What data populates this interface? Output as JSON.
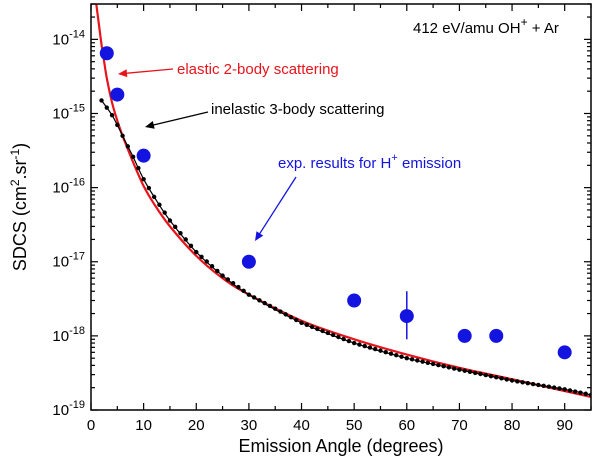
{
  "chart_data": {
    "type": "scatter",
    "title": "412 eV/amu OH⁺ + Ar",
    "xlabel": "Emission Angle (degrees)",
    "ylabel": "SDCS (cm².sr⁻¹)",
    "xlim": [
      0,
      95
    ],
    "ylim": [
      1e-19,
      3e-14
    ],
    "yscale": "log",
    "x_ticks": [
      0,
      10,
      20,
      30,
      40,
      50,
      60,
      70,
      80,
      90
    ],
    "x_tick_labels": [
      "0",
      "10",
      "20",
      "30",
      "40",
      "50",
      "60",
      "70",
      "80",
      "90"
    ],
    "y_ticks": [
      1e-19,
      1e-18,
      1e-17,
      1e-16,
      1e-15,
      1e-14
    ],
    "y_tick_labels": [
      {
        "base": "10",
        "exp": "-19"
      },
      {
        "base": "10",
        "exp": "-18"
      },
      {
        "base": "10",
        "exp": "-17"
      },
      {
        "base": "10",
        "exp": "-16"
      },
      {
        "base": "10",
        "exp": "-15"
      },
      {
        "base": "10",
        "exp": "-14"
      }
    ],
    "grid": false,
    "series": [
      {
        "name": "elastic 2-body scattering",
        "kind": "line",
        "color": "#e8141b",
        "x": [
          1,
          1.5,
          2,
          2.5,
          3,
          4,
          5,
          6,
          7,
          8,
          10,
          12,
          15,
          20,
          25,
          30,
          40,
          50,
          60,
          70,
          80,
          90,
          95
        ],
        "y": [
          3e-14,
          1.6e-14,
          8.5e-15,
          5e-15,
          3e-15,
          1.4e-15,
          8e-16,
          5e-16,
          3.3e-16,
          2.2e-16,
          1.05e-16,
          6e-17,
          3e-17,
          1.2e-17,
          6e-18,
          3.6e-18,
          1.6e-18,
          9e-19,
          5.6e-19,
          3.7e-19,
          2.6e-19,
          1.8e-19,
          1.5e-19
        ]
      },
      {
        "name": "inelastic 3-body scattering",
        "kind": "line-markers",
        "color": "#000000",
        "x": [
          2,
          3,
          4,
          5,
          6,
          7,
          8,
          10,
          12,
          15,
          20,
          25,
          30,
          40,
          50,
          60,
          70,
          80,
          90,
          95
        ],
        "y": [
          1.5e-15,
          1.2e-15,
          9.5e-16,
          7e-16,
          5e-16,
          3.6e-16,
          2.6e-16,
          1.3e-16,
          7.5e-17,
          3.6e-17,
          1.35e-17,
          6.5e-18,
          3.6e-18,
          1.5e-18,
          8e-19,
          5e-19,
          3.5e-19,
          2.5e-19,
          1.9e-19,
          1.6e-19
        ]
      },
      {
        "name": "exp. results for H⁺ emission",
        "kind": "scatter",
        "color": "#1414e0",
        "x": [
          3,
          5,
          10,
          30,
          50,
          60,
          71,
          77,
          90
        ],
        "y": [
          6.5e-15,
          1.8e-15,
          2.7e-16,
          1e-17,
          3e-18,
          1.85e-18,
          1e-18,
          1e-18,
          6e-19
        ]
      }
    ],
    "error_bars": [
      {
        "x": 60,
        "y": 1.85e-18,
        "y_low": 9e-19,
        "y_high": 4e-18
      }
    ],
    "annotations": [
      {
        "text": "elastic 2-body scattering",
        "color": "#e8141b",
        "x": 3.5,
        "y": 3e-15
      },
      {
        "text": "inelastic 3-body scattering",
        "color": "#000000",
        "x": 8,
        "y": 4.5e-16
      },
      {
        "text": "exp. results for H⁺ emission",
        "color": "#1414e0",
        "x": 31,
        "y": 1.5e-17
      }
    ]
  }
}
